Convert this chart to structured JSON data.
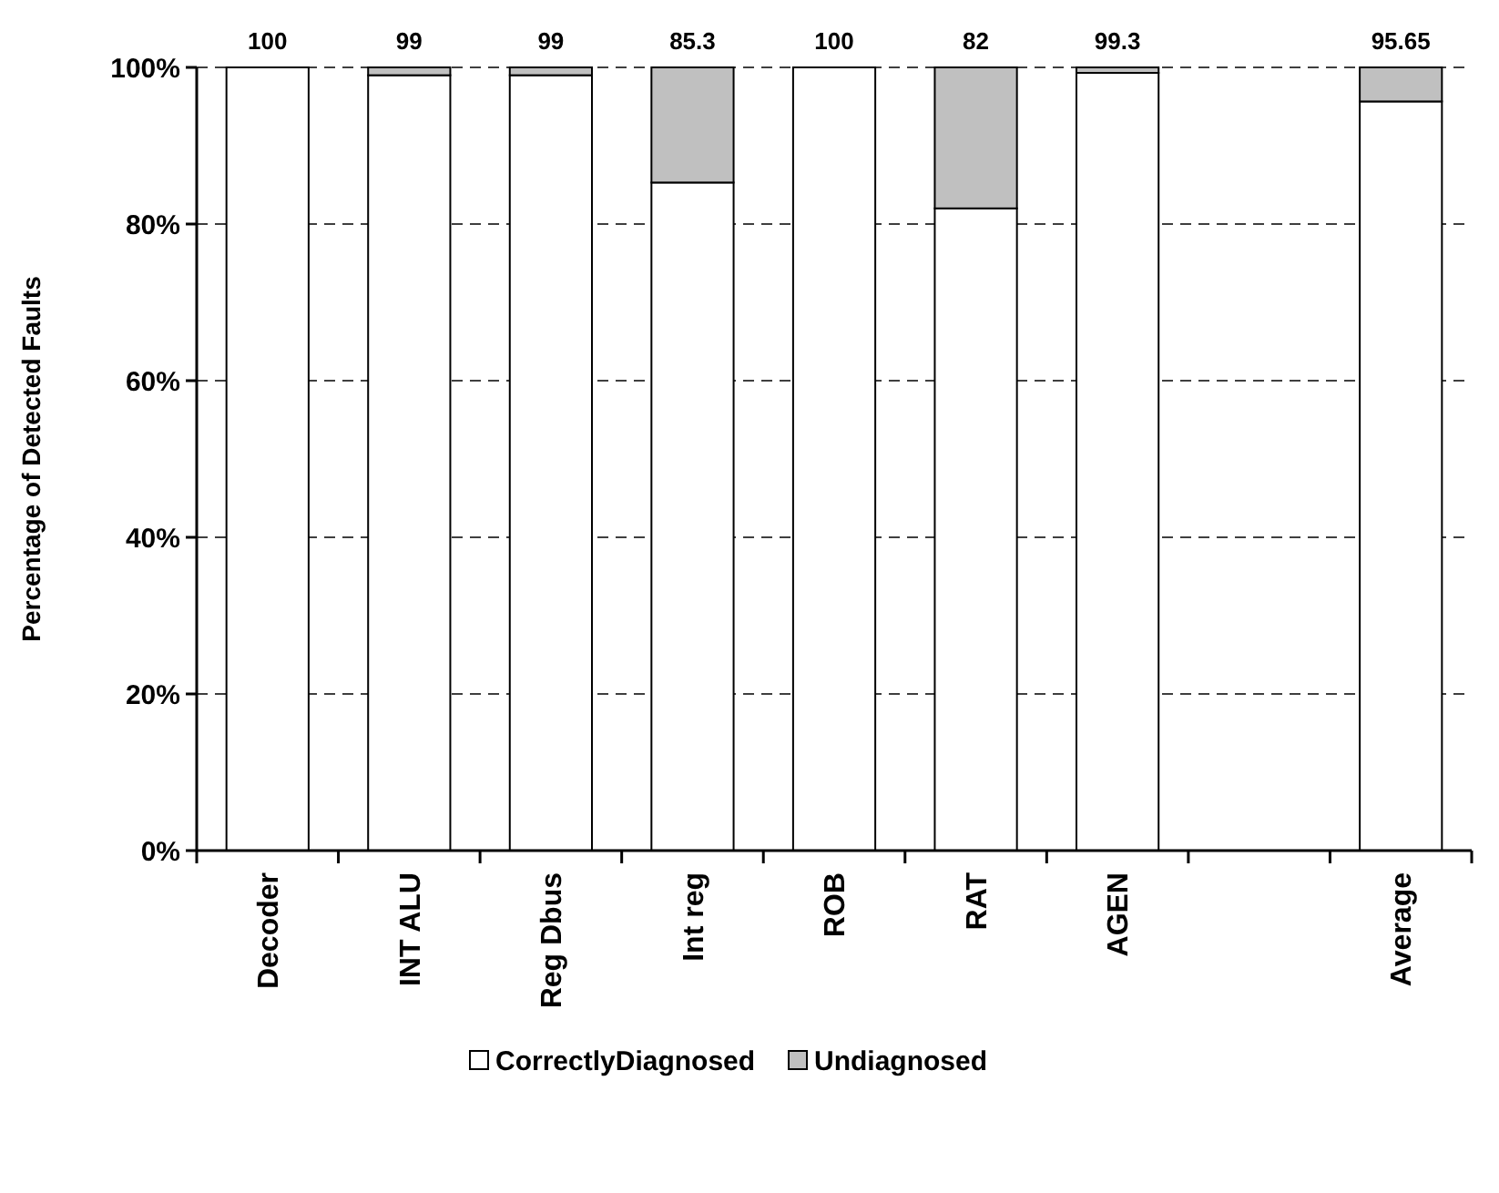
{
  "chart_data": {
    "type": "bar",
    "stacked": true,
    "ylabel": "Percentage of Detected Faults",
    "categories": [
      "Decoder",
      "INT ALU",
      "Reg Dbus",
      "Int reg",
      "ROB",
      "RAT",
      "AGEN",
      null,
      "Average"
    ],
    "series": [
      {
        "name": "CorrectlyDiagnosed",
        "color": "#ffffff",
        "values": [
          100,
          99,
          99,
          85.3,
          100,
          82,
          99.3,
          null,
          95.65
        ]
      },
      {
        "name": "Undiagnosed",
        "color": "#c0c0c0",
        "values": [
          0,
          1,
          1,
          14.7,
          0,
          18,
          0.7,
          null,
          4.35
        ]
      }
    ],
    "ylim": [
      0,
      100
    ],
    "yticks": [
      {
        "value": 0,
        "label": "0%"
      },
      {
        "value": 20,
        "label": "20%"
      },
      {
        "value": 40,
        "label": "40%"
      },
      {
        "value": 60,
        "label": "60%"
      },
      {
        "value": 80,
        "label": "80%"
      },
      {
        "value": 100,
        "label": "100%"
      }
    ],
    "annotations": [
      {
        "text": "100",
        "x": "Decoder",
        "y": 100
      },
      {
        "text": "99",
        "x": "INT ALU",
        "y": 100
      },
      {
        "text": "99",
        "x": "Reg Dbus",
        "y": 100
      },
      {
        "text": "85.3",
        "x": "Int reg",
        "y": 100
      },
      {
        "text": "100",
        "x": "ROB",
        "y": 100
      },
      {
        "text": "82",
        "x": "RAT",
        "y": 100
      },
      {
        "text": "99.3",
        "x": "AGEN",
        "y": 100
      },
      {
        "text": "95.65",
        "x": "Average",
        "y": 100
      }
    ],
    "grid": "y",
    "line_style": "dashed",
    "legend": "bottom"
  }
}
